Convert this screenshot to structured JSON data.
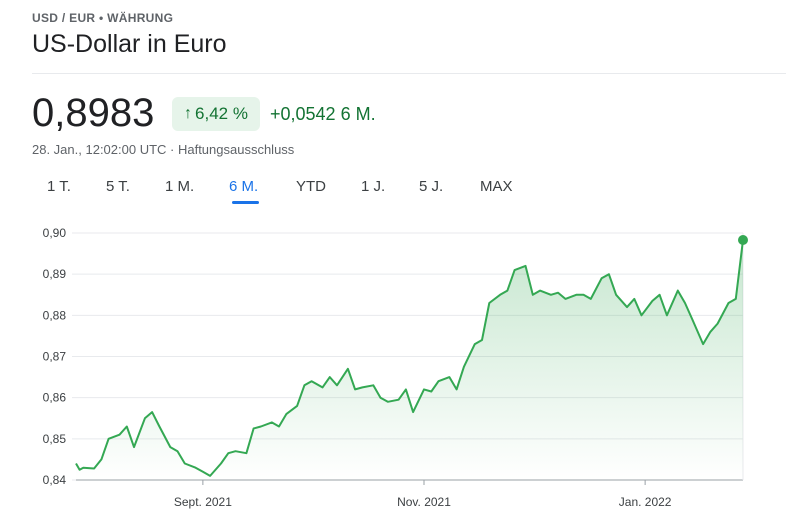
{
  "header": {
    "breadcrumb": "USD / EUR • WÄHRUNG",
    "title": "US-Dollar in Euro"
  },
  "quote": {
    "price": "0,8983",
    "change_percent": "6,42 %",
    "change_arrow": "↑",
    "change_abs": "+0,0542 6 M.",
    "timestamp": "28. Jan., 12:02:00 UTC · Haftungsausschluss"
  },
  "tabs": [
    {
      "label": "1 T."
    },
    {
      "label": "5 T."
    },
    {
      "label": "1 M."
    },
    {
      "label": "6 M.",
      "active": true
    },
    {
      "label": "YTD"
    },
    {
      "label": "1 J."
    },
    {
      "label": "5 J."
    },
    {
      "label": "MAX"
    }
  ],
  "colors": {
    "line": "#34a853",
    "positive": "#137333",
    "positive_bg": "#e6f4ea",
    "accent": "#1a73e8"
  },
  "chart_data": {
    "type": "area",
    "ylim": [
      0.84,
      0.9
    ],
    "yticks": [
      {
        "value": 0.9,
        "label": "0,90"
      },
      {
        "value": 0.89,
        "label": "0,89"
      },
      {
        "value": 0.88,
        "label": "0,88"
      },
      {
        "value": 0.87,
        "label": "0,87"
      },
      {
        "value": 0.86,
        "label": "0,86"
      },
      {
        "value": 0.85,
        "label": "0,85"
      },
      {
        "value": 0.84,
        "label": "0,84"
      }
    ],
    "xlim": [
      "2021-07-28",
      "2022-01-28"
    ],
    "xticks": [
      {
        "date": "2021-09-01",
        "label": "Sept. 2021"
      },
      {
        "date": "2021-11-01",
        "label": "Nov. 2021"
      },
      {
        "date": "2022-01-01",
        "label": "Jan. 2022"
      }
    ],
    "grid": true,
    "series": [
      {
        "x": [
          "2021-07-28",
          "2021-07-29",
          "2021-07-30",
          "2021-08-02",
          "2021-08-04",
          "2021-08-06",
          "2021-08-09",
          "2021-08-11",
          "2021-08-13",
          "2021-08-16",
          "2021-08-18",
          "2021-08-20",
          "2021-08-23",
          "2021-08-25",
          "2021-08-27",
          "2021-08-30",
          "2021-09-01",
          "2021-09-03",
          "2021-09-06",
          "2021-09-08",
          "2021-09-10",
          "2021-09-13",
          "2021-09-15",
          "2021-09-17",
          "2021-09-20",
          "2021-09-22",
          "2021-09-24",
          "2021-09-27",
          "2021-09-29",
          "2021-10-01",
          "2021-10-04",
          "2021-10-06",
          "2021-10-08",
          "2021-10-11",
          "2021-10-13",
          "2021-10-15",
          "2021-10-18",
          "2021-10-20",
          "2021-10-22",
          "2021-10-25",
          "2021-10-27",
          "2021-10-29",
          "2021-11-01",
          "2021-11-03",
          "2021-11-05",
          "2021-11-08",
          "2021-11-10",
          "2021-11-12",
          "2021-11-15",
          "2021-11-17",
          "2021-11-19",
          "2021-11-22",
          "2021-11-24",
          "2021-11-26",
          "2021-11-29",
          "2021-12-01",
          "2021-12-03",
          "2021-12-06",
          "2021-12-08",
          "2021-12-10",
          "2021-12-13",
          "2021-12-15",
          "2021-12-17",
          "2021-12-20",
          "2021-12-22",
          "2021-12-24",
          "2021-12-27",
          "2021-12-29",
          "2021-12-31",
          "2022-01-03",
          "2022-01-05",
          "2022-01-07",
          "2022-01-10",
          "2022-01-12",
          "2022-01-14",
          "2022-01-17",
          "2022-01-19",
          "2022-01-21",
          "2022-01-24",
          "2022-01-26",
          "2022-01-28"
        ],
        "values": [
          0.844,
          0.8425,
          0.843,
          0.8428,
          0.845,
          0.85,
          0.851,
          0.853,
          0.848,
          0.855,
          0.8565,
          0.853,
          0.848,
          0.847,
          0.844,
          0.843,
          0.842,
          0.841,
          0.844,
          0.8465,
          0.847,
          0.8465,
          0.8525,
          0.853,
          0.854,
          0.853,
          0.856,
          0.858,
          0.863,
          0.864,
          0.8625,
          0.865,
          0.863,
          0.867,
          0.862,
          0.8625,
          0.863,
          0.86,
          0.859,
          0.8595,
          0.862,
          0.8565,
          0.862,
          0.8615,
          0.864,
          0.865,
          0.862,
          0.8675,
          0.873,
          0.874,
          0.883,
          0.885,
          0.886,
          0.891,
          0.892,
          0.885,
          0.886,
          0.885,
          0.8855,
          0.884,
          0.885,
          0.885,
          0.884,
          0.889,
          0.89,
          0.885,
          0.882,
          0.884,
          0.88,
          0.8835,
          0.885,
          0.88,
          0.886,
          0.883,
          0.879,
          0.873,
          0.876,
          0.878,
          0.883,
          0.884,
          0.8983
        ]
      }
    ]
  }
}
